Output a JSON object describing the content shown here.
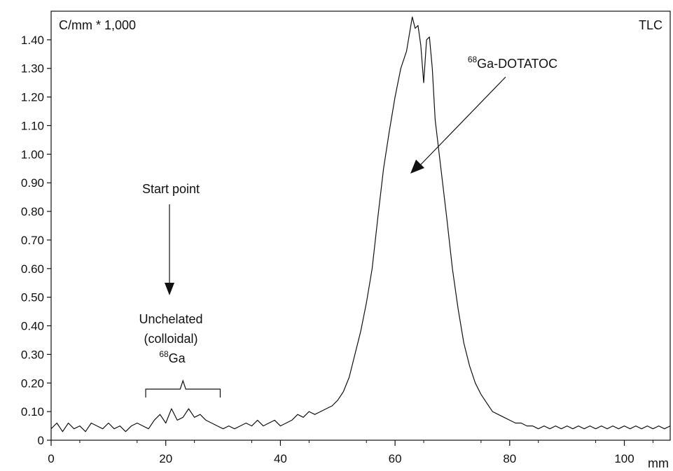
{
  "chart_data": {
    "type": "line",
    "title": "",
    "ylabel": "C/mm * 1,000",
    "xlabel": "mm",
    "corner_label": "TLC",
    "xlim": [
      0,
      108
    ],
    "ylim": [
      0,
      1.5
    ],
    "x_ticks": [
      "0",
      "20",
      "40",
      "60",
      "80",
      "100"
    ],
    "x_tick_values": [
      0,
      20,
      40,
      60,
      80,
      100
    ],
    "y_ticks": [
      "0",
      "0.10",
      "0.20",
      "0.30",
      "0.40",
      "0.50",
      "0.60",
      "0.70",
      "0.80",
      "0.90",
      "1.00",
      "1.10",
      "1.20",
      "1.30",
      "1.40"
    ],
    "y_tick_values": [
      0,
      0.1,
      0.2,
      0.3,
      0.4,
      0.5,
      0.6,
      0.7,
      0.8,
      0.9,
      1.0,
      1.1,
      1.2,
      1.3,
      1.4
    ],
    "grid": false,
    "line_color": "#111111",
    "series": [
      {
        "x": [
          0,
          1,
          2,
          3,
          4,
          5,
          6,
          7,
          8,
          9,
          10,
          11,
          12,
          13,
          14,
          15,
          16,
          17,
          18,
          19,
          20,
          21,
          22,
          23,
          24,
          25,
          26,
          27,
          28,
          29,
          30,
          31,
          32,
          33,
          34,
          35,
          36,
          37,
          38,
          39,
          40,
          41,
          42,
          43,
          44,
          45,
          46,
          47,
          48,
          49,
          50,
          51,
          52,
          53,
          54,
          55,
          56,
          57,
          58,
          59,
          60,
          61,
          62,
          62.5,
          63,
          63.5,
          64,
          64.5,
          65,
          65.5,
          66,
          66.5,
          67,
          68,
          69,
          70,
          71,
          72,
          73,
          74,
          75,
          76,
          77,
          78,
          79,
          80,
          81,
          82,
          83,
          84,
          85,
          86,
          87,
          88,
          89,
          90,
          91,
          92,
          93,
          94,
          95,
          96,
          97,
          98,
          99,
          100,
          101,
          102,
          103,
          104,
          105,
          106,
          107,
          108
        ],
        "y": [
          0.04,
          0.06,
          0.03,
          0.06,
          0.04,
          0.05,
          0.03,
          0.06,
          0.05,
          0.04,
          0.06,
          0.04,
          0.05,
          0.03,
          0.05,
          0.06,
          0.05,
          0.04,
          0.07,
          0.09,
          0.06,
          0.11,
          0.07,
          0.08,
          0.11,
          0.08,
          0.09,
          0.07,
          0.06,
          0.05,
          0.04,
          0.05,
          0.04,
          0.05,
          0.06,
          0.05,
          0.07,
          0.05,
          0.06,
          0.07,
          0.05,
          0.06,
          0.07,
          0.09,
          0.08,
          0.1,
          0.09,
          0.1,
          0.11,
          0.12,
          0.14,
          0.17,
          0.22,
          0.3,
          0.38,
          0.48,
          0.6,
          0.78,
          0.95,
          1.08,
          1.2,
          1.3,
          1.36,
          1.42,
          1.48,
          1.44,
          1.45,
          1.38,
          1.25,
          1.4,
          1.41,
          1.3,
          1.12,
          0.95,
          0.78,
          0.6,
          0.46,
          0.34,
          0.26,
          0.2,
          0.16,
          0.13,
          0.1,
          0.09,
          0.08,
          0.07,
          0.06,
          0.06,
          0.05,
          0.05,
          0.04,
          0.05,
          0.04,
          0.05,
          0.04,
          0.05,
          0.04,
          0.05,
          0.04,
          0.05,
          0.04,
          0.05,
          0.04,
          0.05,
          0.04,
          0.05,
          0.04,
          0.05,
          0.04,
          0.05,
          0.04,
          0.05,
          0.04,
          0.05
        ]
      }
    ],
    "annotations": {
      "start_point": {
        "text": "Start point",
        "x": 23
      },
      "unchelated": {
        "line1": "Unchelated",
        "line2": "(colloidal)",
        "superscript": "68",
        "element": "Ga",
        "x_from": 16.5,
        "x_to": 29.5,
        "x_center": 23
      },
      "dotatoc": {
        "superscript": "68",
        "text": "Ga-DOTATOC",
        "x": 69
      }
    }
  }
}
